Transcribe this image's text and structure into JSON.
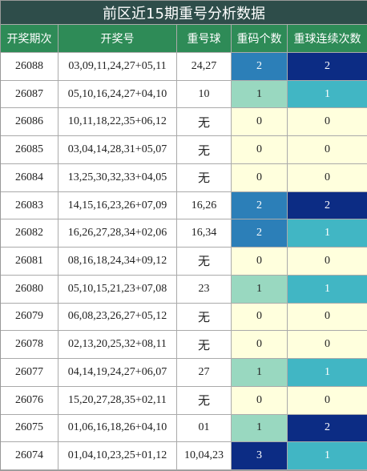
{
  "title": "前区近15期重号分析数据",
  "table": {
    "header": [
      "开奖期次",
      "开奖号",
      "重号球",
      "重码个数",
      "重球连续次数"
    ],
    "count_colors": [
      [
        "#ffffdd",
        "#222222"
      ],
      [
        "#99d8c0",
        "#222222"
      ],
      [
        "#2c7fb8",
        "#ffffff"
      ],
      [
        "#0c2c84",
        "#ffffff"
      ]
    ],
    "streak_colors": [
      [
        "#ffffdd",
        "#222222"
      ],
      [
        "#41b6c4",
        "#ffffff"
      ],
      [
        "#0c2c84",
        "#ffffff"
      ]
    ],
    "rows": [
      [
        "26088",
        "03,09,11,24,27+05,11",
        "24,27",
        2,
        2
      ],
      [
        "26087",
        "05,10,16,24,27+04,10",
        "10",
        1,
        1
      ],
      [
        "26086",
        "10,11,18,22,35+06,12",
        "无",
        0,
        0
      ],
      [
        "26085",
        "03,04,14,28,31+05,07",
        "无",
        0,
        0
      ],
      [
        "26084",
        "13,25,30,32,33+04,05",
        "无",
        0,
        0
      ],
      [
        "26083",
        "14,15,16,23,26+07,09",
        "16,26",
        2,
        2
      ],
      [
        "26082",
        "16,26,27,28,34+02,06",
        "16,34",
        2,
        1
      ],
      [
        "26081",
        "08,16,18,24,34+09,12",
        "无",
        0,
        0
      ],
      [
        "26080",
        "05,10,15,21,23+07,08",
        "23",
        1,
        1
      ],
      [
        "26079",
        "06,08,23,26,27+05,12",
        "无",
        0,
        0
      ],
      [
        "26078",
        "02,13,20,25,32+08,11",
        "无",
        0,
        0
      ],
      [
        "26077",
        "04,14,19,24,27+06,07",
        "27",
        1,
        1
      ],
      [
        "26076",
        "15,20,27,28,35+02,11",
        "无",
        0,
        0
      ],
      [
        "26075",
        "01,06,16,18,26+04,10",
        "01",
        1,
        2
      ],
      [
        "26074",
        "01,04,10,23,25+01,12",
        "10,04,23",
        3,
        1
      ]
    ]
  }
}
